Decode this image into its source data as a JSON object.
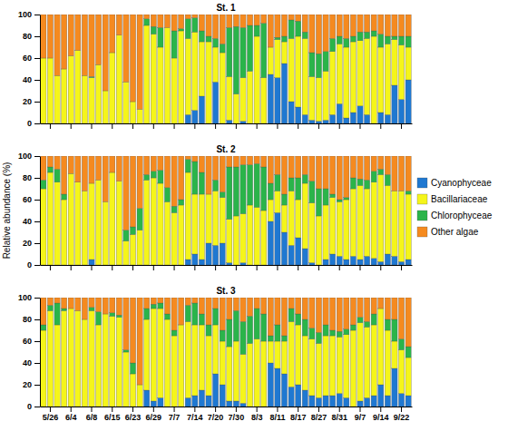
{
  "chart_data": [
    {
      "type": "bar",
      "title": "St. 1",
      "stacked": true,
      "tick_labels": "y",
      "categories": [
        null,
        "5/26",
        null,
        null,
        "6/4",
        null,
        null,
        "6/8",
        null,
        null,
        "6/15",
        null,
        null,
        "6/23",
        null,
        null,
        "6/29",
        null,
        null,
        "7/7",
        null,
        null,
        "7/14",
        null,
        null,
        "7/20",
        null,
        null,
        "7/30",
        null,
        null,
        "8/3",
        null,
        null,
        "8/11",
        null,
        null,
        "8/17",
        null,
        null,
        "8/27",
        null,
        null,
        "8/31",
        null,
        null,
        "9/7",
        null,
        null,
        "9/14",
        null,
        null,
        "9/22",
        null
      ],
      "ylim": [
        0,
        100
      ],
      "yticks": [
        0,
        20,
        40,
        60,
        80,
        100
      ],
      "series": [
        {
          "name": "Cyanophyceae",
          "color": "#1f78d1",
          "values": [
            0,
            0,
            0,
            0,
            0,
            0,
            0,
            0,
            0,
            0,
            0,
            0,
            0,
            0,
            0,
            0,
            0,
            0,
            0,
            0,
            0,
            8,
            12,
            25,
            0,
            38,
            0,
            3,
            0,
            2,
            0,
            0,
            0,
            45,
            42,
            55,
            20,
            15,
            8,
            3,
            2,
            3,
            8,
            18,
            5,
            10,
            16,
            8,
            0,
            10,
            8,
            35,
            22,
            40
          ]
        },
        {
          "name": "Bacillariaceae",
          "color": "#f5f51a",
          "values": [
            60,
            60,
            44,
            50,
            62,
            67,
            44,
            42,
            54,
            30,
            65,
            81,
            38,
            20,
            13,
            90,
            82,
            70,
            88,
            60,
            85,
            70,
            72,
            50,
            75,
            32,
            65,
            40,
            27,
            40,
            48,
            80,
            42,
            25,
            35,
            20,
            58,
            65,
            70,
            40,
            40,
            45,
            58,
            55,
            65,
            65,
            60,
            70,
            80,
            60,
            65,
            42,
            50,
            30
          ]
        },
        {
          "name": "Chlorophyceae",
          "color": "#2ab44a",
          "values": [
            0,
            0,
            0,
            0,
            0,
            0,
            0,
            1,
            0,
            0,
            0,
            0,
            0,
            0,
            0,
            6,
            7,
            18,
            0,
            25,
            2,
            18,
            13,
            10,
            5,
            8,
            8,
            45,
            62,
            46,
            42,
            10,
            50,
            0,
            2,
            5,
            17,
            14,
            6,
            22,
            22,
            18,
            12,
            7,
            8,
            5,
            8,
            6,
            5,
            12,
            7,
            3,
            8,
            10
          ]
        },
        {
          "name": "Other algae",
          "color": "#f58a1f",
          "values": [
            40,
            40,
            56,
            50,
            38,
            33,
            56,
            57,
            46,
            70,
            35,
            19,
            62,
            80,
            87,
            4,
            11,
            12,
            12,
            15,
            13,
            4,
            3,
            15,
            20,
            22,
            27,
            12,
            11,
            12,
            10,
            10,
            8,
            30,
            21,
            20,
            5,
            6,
            16,
            35,
            36,
            34,
            22,
            20,
            22,
            20,
            16,
            16,
            15,
            18,
            20,
            20,
            20,
            20
          ]
        }
      ]
    },
    {
      "type": "bar",
      "title": "St. 2",
      "stacked": true,
      "tick_labels": "y",
      "legend": "right",
      "y_label": "Relative abundance (%)",
      "categories": [
        null,
        "5/26",
        null,
        null,
        "6/4",
        null,
        null,
        "6/8",
        null,
        null,
        "6/15",
        null,
        null,
        "6/23",
        null,
        null,
        "6/29",
        null,
        null,
        "7/7",
        null,
        null,
        "7/14",
        null,
        null,
        "7/20",
        null,
        null,
        "7/30",
        null,
        null,
        "8/3",
        null,
        null,
        "8/11",
        null,
        null,
        "8/17",
        null,
        null,
        "8/27",
        null,
        null,
        "8/31",
        null,
        null,
        "9/7",
        null,
        null,
        "9/14",
        null,
        null,
        "9/22",
        null
      ],
      "ylim": [
        0,
        100
      ],
      "yticks": [
        0,
        20,
        40,
        60,
        80,
        100
      ],
      "series": [
        {
          "name": "Cyanophyceae",
          "color": "#1f78d1",
          "values": [
            0,
            0,
            0,
            0,
            0,
            0,
            0,
            5,
            0,
            0,
            0,
            0,
            0,
            0,
            0,
            0,
            0,
            0,
            0,
            0,
            0,
            5,
            10,
            5,
            20,
            18,
            20,
            2,
            0,
            2,
            0,
            0,
            0,
            40,
            48,
            30,
            18,
            25,
            15,
            2,
            0,
            5,
            10,
            8,
            5,
            8,
            5,
            8,
            6,
            3,
            10,
            8,
            3,
            5
          ]
        },
        {
          "name": "Bacillariaceae",
          "color": "#f5f51a",
          "values": [
            70,
            85,
            76,
            60,
            84,
            76,
            68,
            70,
            78,
            58,
            85,
            77,
            22,
            28,
            32,
            78,
            80,
            75,
            58,
            48,
            55,
            80,
            55,
            60,
            45,
            50,
            42,
            40,
            45,
            45,
            55,
            53,
            50,
            20,
            20,
            25,
            50,
            35,
            60,
            55,
            45,
            50,
            52,
            50,
            55,
            62,
            68,
            62,
            70,
            80,
            63,
            60,
            65,
            60
          ]
        },
        {
          "name": "Chlorophyceae",
          "color": "#2ab44a",
          "values": [
            8,
            5,
            12,
            5,
            0,
            0,
            0,
            0,
            0,
            0,
            0,
            0,
            10,
            7,
            20,
            5,
            6,
            12,
            13,
            6,
            5,
            12,
            30,
            20,
            0,
            10,
            5,
            48,
            45,
            45,
            37,
            40,
            40,
            15,
            15,
            10,
            12,
            20,
            8,
            20,
            25,
            15,
            3,
            2,
            2,
            10,
            6,
            8,
            10,
            5,
            10,
            0,
            0,
            3
          ]
        },
        {
          "name": "Other algae",
          "color": "#f58a1f",
          "values": [
            22,
            10,
            12,
            35,
            16,
            24,
            32,
            25,
            22,
            42,
            15,
            23,
            68,
            65,
            48,
            17,
            14,
            13,
            29,
            46,
            40,
            3,
            5,
            15,
            35,
            22,
            33,
            10,
            10,
            8,
            8,
            7,
            10,
            25,
            17,
            35,
            20,
            20,
            17,
            23,
            30,
            30,
            35,
            40,
            38,
            20,
            21,
            22,
            14,
            12,
            17,
            32,
            32,
            32
          ]
        }
      ]
    },
    {
      "type": "bar",
      "title": "St. 3",
      "stacked": true,
      "categories": [
        null,
        "5/26",
        null,
        null,
        "6/4",
        null,
        null,
        "6/8",
        null,
        null,
        "6/15",
        null,
        null,
        "6/23",
        null,
        null,
        "6/29",
        null,
        null,
        "7/7",
        null,
        null,
        "7/14",
        null,
        null,
        "7/20",
        null,
        null,
        "7/30",
        null,
        null,
        "8/3",
        null,
        null,
        "8/11",
        null,
        null,
        "8/17",
        null,
        null,
        "8/27",
        null,
        null,
        "8/31",
        null,
        null,
        "9/7",
        null,
        null,
        "9/14",
        null,
        null,
        "9/22",
        null
      ],
      "ylim": [
        0,
        100
      ],
      "yticks": [
        0,
        20,
        40,
        60,
        80,
        100
      ],
      "series": [
        {
          "name": "Cyanophyceae",
          "color": "#1f78d1",
          "values": [
            0,
            0,
            0,
            0,
            0,
            0,
            0,
            0,
            0,
            0,
            0,
            0,
            0,
            0,
            0,
            15,
            5,
            8,
            0,
            0,
            0,
            8,
            10,
            15,
            10,
            30,
            20,
            5,
            5,
            3,
            0,
            0,
            0,
            40,
            35,
            30,
            18,
            20,
            15,
            10,
            8,
            10,
            10,
            12,
            8,
            0,
            5,
            8,
            10,
            20,
            10,
            35,
            12,
            10
          ]
        },
        {
          "name": "Bacillariaceae",
          "color": "#f5f51a",
          "values": [
            70,
            88,
            75,
            88,
            90,
            88,
            80,
            88,
            75,
            85,
            83,
            82,
            50,
            30,
            20,
            65,
            85,
            82,
            80,
            65,
            75,
            70,
            65,
            60,
            55,
            45,
            40,
            50,
            55,
            45,
            58,
            62,
            60,
            20,
            25,
            30,
            60,
            55,
            50,
            52,
            50,
            55,
            55,
            52,
            58,
            70,
            72,
            65,
            65,
            70,
            60,
            25,
            40,
            35
          ]
        },
        {
          "name": "Chlorophyceae",
          "color": "#2ab44a",
          "values": [
            5,
            5,
            20,
            2,
            0,
            0,
            0,
            3,
            12,
            0,
            3,
            2,
            2,
            10,
            0,
            10,
            4,
            5,
            5,
            5,
            0,
            15,
            20,
            10,
            10,
            15,
            10,
            25,
            28,
            30,
            25,
            28,
            25,
            5,
            15,
            5,
            12,
            10,
            15,
            10,
            10,
            10,
            5,
            5,
            5,
            5,
            5,
            5,
            10,
            0,
            10,
            20,
            10,
            10
          ]
        },
        {
          "name": "Other algae",
          "color": "#f58a1f",
          "values": [
            25,
            7,
            5,
            10,
            10,
            12,
            20,
            9,
            13,
            15,
            14,
            16,
            48,
            60,
            80,
            10,
            6,
            5,
            15,
            30,
            25,
            7,
            5,
            15,
            25,
            10,
            30,
            20,
            12,
            22,
            17,
            10,
            15,
            35,
            25,
            35,
            10,
            15,
            20,
            28,
            32,
            25,
            30,
            31,
            29,
            25,
            18,
            22,
            15,
            10,
            20,
            20,
            38,
            45
          ]
        }
      ]
    }
  ]
}
